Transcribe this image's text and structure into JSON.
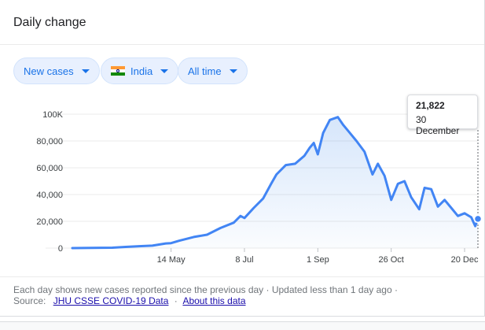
{
  "header": {
    "title": "Daily change"
  },
  "filters": {
    "metric": {
      "label": "New cases"
    },
    "region": {
      "label": "India",
      "flag": "india-flag-icon"
    },
    "range": {
      "label": "All time"
    }
  },
  "colors": {
    "accent": "#1a73e8",
    "line": "#4285f4",
    "fill": "#e8f0fe"
  },
  "tooltip": {
    "value": "21,822",
    "date": "30 December"
  },
  "footer": {
    "note": "Each day shows new cases reported since the previous day · Updated less than 1 day ago ·",
    "source_label": "Source:",
    "source_link": "JHU CSSE COVID-19 Data",
    "about_link": "About this data"
  },
  "chart_data": {
    "type": "area",
    "title": "",
    "xlabel": "",
    "ylabel": "",
    "y_tick_labels": [
      "0",
      "20,000",
      "40,000",
      "60,000",
      "80,000",
      "100K"
    ],
    "y_tick_values": [
      0,
      20000,
      40000,
      60000,
      80000,
      100000
    ],
    "x_tick_labels": [
      "14 May",
      "8 Jul",
      "1 Sep",
      "26 Oct",
      "20 Dec"
    ],
    "x_tick_dates": [
      "2020-05-14",
      "2020-07-08",
      "2020-09-01",
      "2020-10-26",
      "2020-12-20"
    ],
    "ylim": [
      0,
      100000
    ],
    "xlim": [
      "2020-03-01",
      "2020-12-30"
    ],
    "grid": true,
    "series": [
      {
        "points": [
          [
            "2020-03-01",
            0
          ],
          [
            "2020-03-15",
            100
          ],
          [
            "2020-03-31",
            300
          ],
          [
            "2020-04-10",
            900
          ],
          [
            "2020-04-20",
            1400
          ],
          [
            "2020-04-30",
            1800
          ],
          [
            "2020-05-10",
            3500
          ],
          [
            "2020-05-14",
            3700
          ],
          [
            "2020-05-20",
            5500
          ],
          [
            "2020-05-31",
            8300
          ],
          [
            "2020-06-10",
            10000
          ],
          [
            "2020-06-20",
            15000
          ],
          [
            "2020-06-30",
            19000
          ],
          [
            "2020-07-05",
            24000
          ],
          [
            "2020-07-08",
            22500
          ],
          [
            "2020-07-15",
            30000
          ],
          [
            "2020-07-22",
            37000
          ],
          [
            "2020-07-28",
            48000
          ],
          [
            "2020-08-01",
            55000
          ],
          [
            "2020-08-08",
            62000
          ],
          [
            "2020-08-15",
            63000
          ],
          [
            "2020-08-22",
            69000
          ],
          [
            "2020-08-26",
            75000
          ],
          [
            "2020-08-29",
            78500
          ],
          [
            "2020-09-01",
            70000
          ],
          [
            "2020-09-05",
            86000
          ],
          [
            "2020-09-10",
            95700
          ],
          [
            "2020-09-16",
            97800
          ],
          [
            "2020-09-20",
            92000
          ],
          [
            "2020-09-25",
            86000
          ],
          [
            "2020-09-30",
            80000
          ],
          [
            "2020-10-06",
            72000
          ],
          [
            "2020-10-12",
            55000
          ],
          [
            "2020-10-16",
            63000
          ],
          [
            "2020-10-21",
            54000
          ],
          [
            "2020-10-26",
            36000
          ],
          [
            "2020-10-31",
            48000
          ],
          [
            "2020-11-05",
            50000
          ],
          [
            "2020-11-10",
            38000
          ],
          [
            "2020-11-16",
            29000
          ],
          [
            "2020-11-20",
            45000
          ],
          [
            "2020-11-25",
            44000
          ],
          [
            "2020-11-30",
            31000
          ],
          [
            "2020-12-05",
            36000
          ],
          [
            "2020-12-10",
            30000
          ],
          [
            "2020-12-15",
            24000
          ],
          [
            "2020-12-20",
            26000
          ],
          [
            "2020-12-25",
            23000
          ],
          [
            "2020-12-28",
            16400
          ],
          [
            "2020-12-30",
            21822
          ]
        ]
      }
    ]
  }
}
